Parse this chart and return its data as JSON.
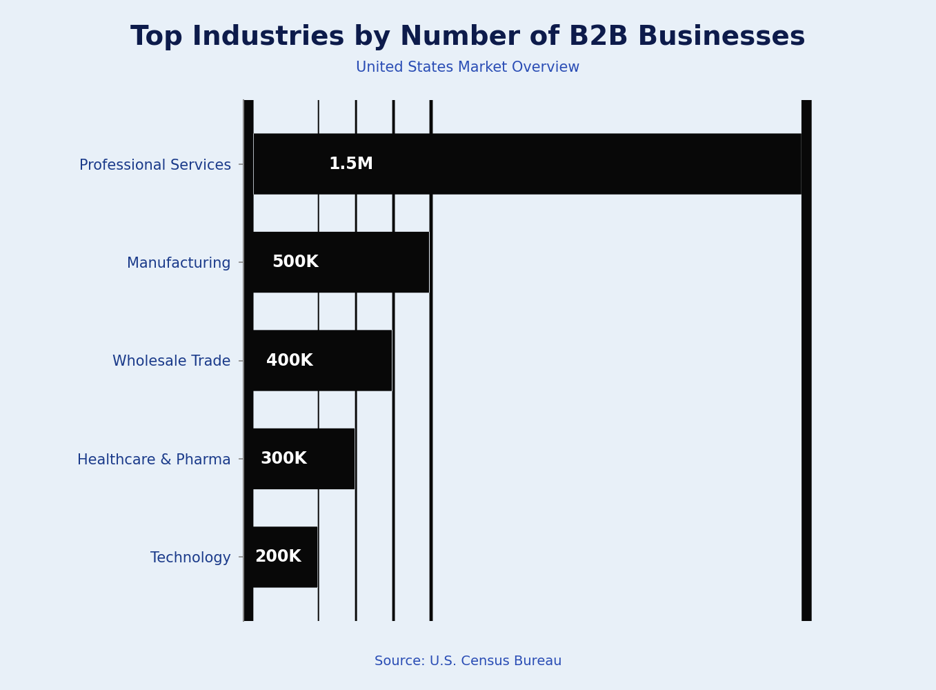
{
  "title": "Top Industries by Number of B2B Businesses",
  "subtitle": "United States Market Overview",
  "source": "Source: U.S. Census Bureau",
  "categories": [
    "Professional Services",
    "Manufacturing",
    "Wholesale Trade",
    "Healthcare & Pharma",
    "Technology"
  ],
  "values": [
    1500000,
    500000,
    400000,
    300000,
    200000
  ],
  "labels": [
    "1.5M",
    "500K",
    "400K",
    "300K",
    "200K"
  ],
  "bar_color": "#080808",
  "label_color": "#ffffff",
  "background_color": "#e8f0f8",
  "title_color": "#0d1b4b",
  "subtitle_color": "#2a4db5",
  "source_color": "#2a4db5",
  "ytick_color": "#1a3a8a",
  "spine_color": "#888888",
  "xlim": [
    0,
    1680000
  ],
  "title_fontsize": 28,
  "subtitle_fontsize": 15,
  "label_fontsize": 17,
  "ytick_fontsize": 15,
  "source_fontsize": 14,
  "bar_height": 0.62,
  "bar_gap": 1.0
}
